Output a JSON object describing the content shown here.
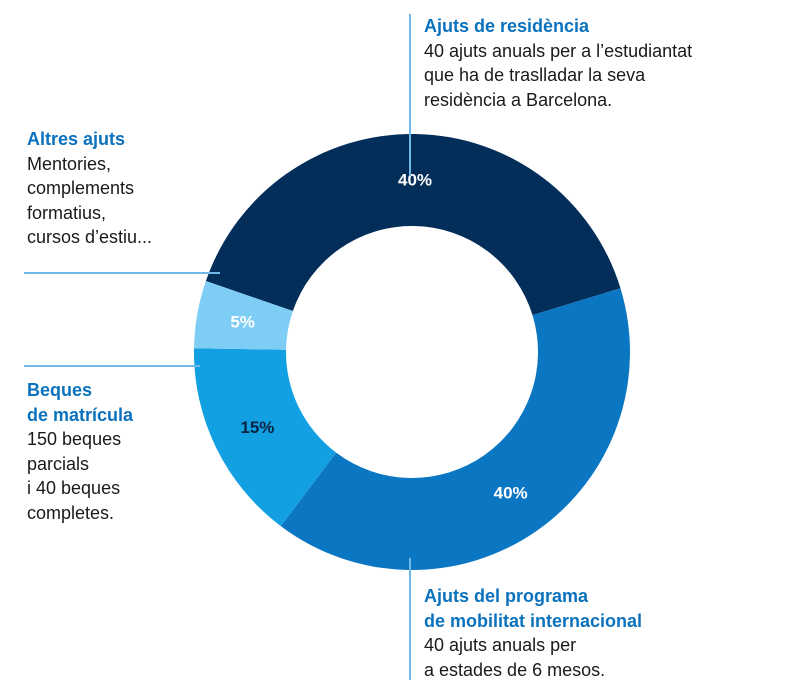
{
  "chart_data": {
    "type": "pie",
    "variant": "donut",
    "slices": [
      {
        "label": "Ajuts de residència",
        "value": 40,
        "display": "40%",
        "color": "#042e5a",
        "text_color": "#ffffff"
      },
      {
        "label": "Ajuts del programa de mobilitat internacional",
        "value": 40,
        "display": "40%",
        "color": "#0b77c2",
        "text_color": "#ffffff"
      },
      {
        "label": "Beques de matrícula",
        "value": 15,
        "display": "15%",
        "color": "#12a0e3",
        "text_color": "#0a2340"
      },
      {
        "label": "Altres ajuts",
        "value": 5,
        "display": "5%",
        "color": "#7ecdf5",
        "text_color": "#ffffff"
      }
    ]
  },
  "annotations": {
    "residencia": {
      "title": "Ajuts de residència",
      "desc": "40 ajuts anuals per a l’estudiantat\nque ha de traslladar la seva\nresidència a Barcelona."
    },
    "altres": {
      "title": "Altres ajuts",
      "desc": "Mentories,\ncomplements\nformatius,\ncursos d’estiu..."
    },
    "beques": {
      "title": "Beques\nde matrícula",
      "desc": "150 beques\nparcials\ni 40 beques\ncompletes."
    },
    "mobilitat": {
      "title": "Ajuts del programa\nde mobilitat internacional",
      "desc": "40 ajuts anuals per\na estades de 6 mesos."
    }
  },
  "colors": {
    "title": "#0a72bd",
    "rule": "#6fb8e8",
    "text": "#1a1a1a"
  }
}
